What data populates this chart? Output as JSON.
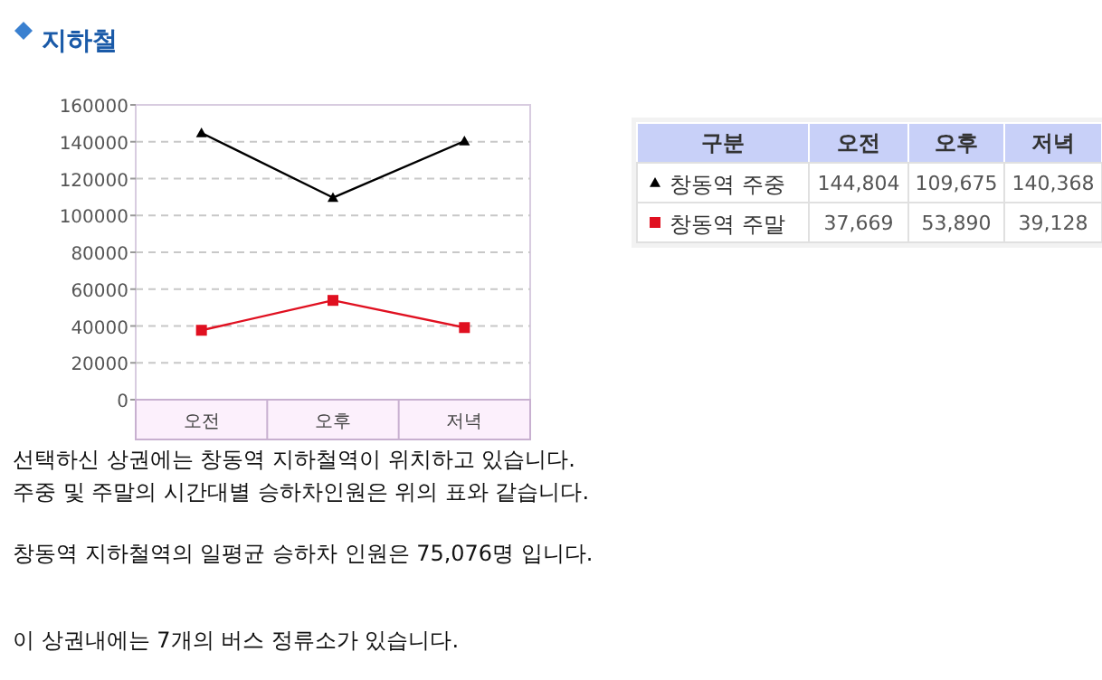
{
  "chart_data": [
    {
      "type": "line",
      "title": "지하철",
      "categories": [
        "오전",
        "오후",
        "저녁"
      ],
      "series": [
        {
          "name": "창동역 주중",
          "color": "#000000",
          "marker": "triangle",
          "values": [
            144804,
            109675,
            140368
          ]
        },
        {
          "name": "창동역 주말",
          "color": "#e01020",
          "marker": "square",
          "values": [
            37669,
            53890,
            39128
          ]
        }
      ],
      "ylim": [
        0,
        160000
      ],
      "yticks": [
        0,
        20000,
        40000,
        60000,
        80000,
        100000,
        120000,
        140000,
        160000
      ],
      "grid": "y",
      "legend": "right",
      "legend_title": "구분",
      "annotations": [
        "선택하신 상권에는 창동역 지하철역이 위치하고 있습니다.",
        "주중 및 주말의 시간대별 승하차인원은 위의 표와 같습니다.",
        "창동역 지하철역의 일평균 승하차 인원은 75,076명 입니다.",
        "이 상권내에는 7개의 버스 정류소가 있습니다."
      ]
    },
    {
      "type": "other",
      "categories": [
        "오전",
        "오후",
        "저녁"
      ],
      "cell_labels": [
        [
          "144,804",
          "109,675",
          "140,368"
        ],
        [
          "37,669",
          "53,890",
          "39,128"
        ]
      ]
    }
  ]
}
